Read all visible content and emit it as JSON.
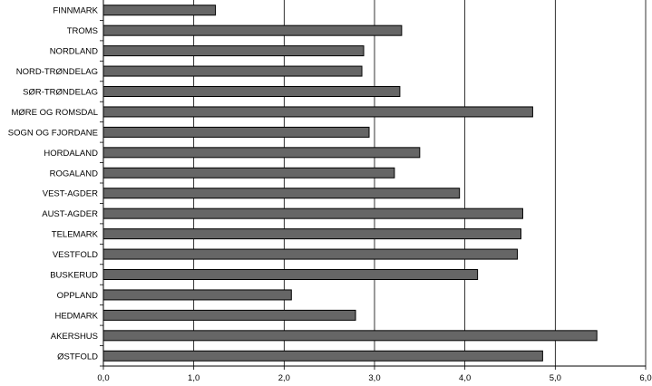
{
  "chart_data": {
    "type": "bar",
    "orientation": "horizontal",
    "categories": [
      "FINNMARK",
      "TROMS",
      "NORDLAND",
      "NORD-TRØNDELAG",
      "SØR-TRØNDELAG",
      "MØRE OG ROMSDAL",
      "SOGN OG FJORDANE",
      "HORDALAND",
      "ROGALAND",
      "VEST-AGDER",
      "AUST-AGDER",
      "TELEMARK",
      "VESTFOLD",
      "BUSKERUD",
      "OPPLAND",
      "HEDMARK",
      "AKERSHUS",
      "ØSTFOLD"
    ],
    "values": [
      1.24,
      3.3,
      2.88,
      2.86,
      3.28,
      4.75,
      2.94,
      3.5,
      3.22,
      3.94,
      4.64,
      4.62,
      4.58,
      4.14,
      2.08,
      2.79,
      5.46,
      4.86
    ],
    "xlim": [
      0,
      6
    ],
    "xticks": [
      0,
      1,
      2,
      3,
      4,
      5,
      6
    ],
    "xtick_labels": [
      "0,0",
      "1,0",
      "2,0",
      "3,0",
      "4,0",
      "5,0",
      "6,0"
    ],
    "grid": "vertical",
    "legend": "none",
    "title": "",
    "xlabel": "",
    "ylabel": "",
    "colors": {
      "bar_fill": "#666666",
      "bar_stroke": "#000000",
      "grid": "#000000",
      "axis": "#000000"
    }
  }
}
